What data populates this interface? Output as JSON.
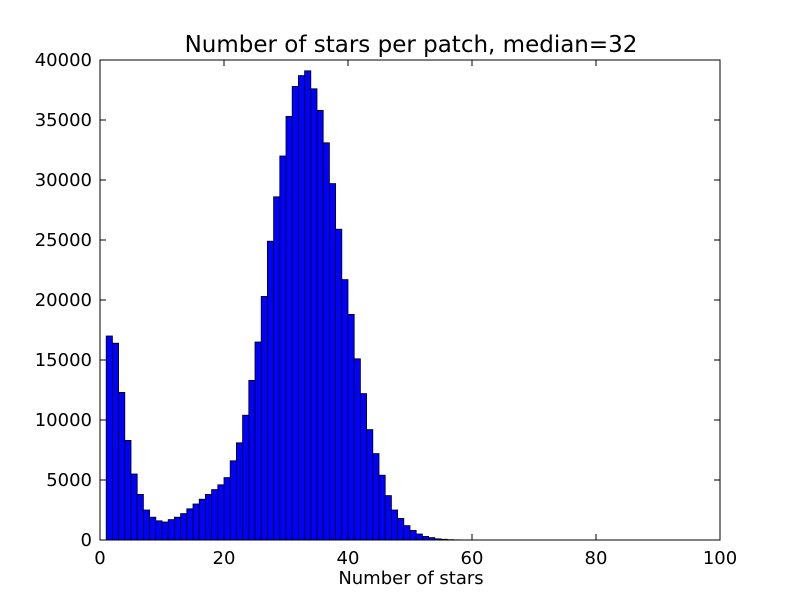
{
  "chart_data": {
    "type": "bar",
    "title": "Number of stars per patch, median=32",
    "xlabel": "Number of stars",
    "ylabel": "",
    "xlim": [
      0,
      100
    ],
    "ylim": [
      0,
      40000
    ],
    "xticks": [
      0,
      20,
      40,
      60,
      80,
      100
    ],
    "yticks": [
      0,
      5000,
      10000,
      15000,
      20000,
      25000,
      30000,
      35000,
      40000
    ],
    "grid": false,
    "bar_color": "#0000ff",
    "edge_color": "#000000",
    "bin_edges_start": 1,
    "bin_width": 1,
    "values": [
      17000,
      16400,
      12300,
      8300,
      5500,
      3800,
      2500,
      1900,
      1600,
      1500,
      1700,
      1900,
      2200,
      2600,
      3000,
      3400,
      3800,
      4200,
      4600,
      5200,
      6600,
      8100,
      10400,
      13300,
      16500,
      20300,
      24900,
      28600,
      32000,
      35300,
      37800,
      38700,
      39100,
      37600,
      35800,
      33100,
      29700,
      25900,
      21700,
      18800,
      15100,
      12200,
      9200,
      7200,
      5400,
      3700,
      2500,
      1800,
      1200,
      800,
      500,
      300,
      200,
      100,
      60,
      30,
      15,
      5,
      0,
      0,
      0,
      0,
      0,
      0,
      0,
      0,
      0,
      0,
      0,
      0,
      0,
      0,
      0,
      0,
      0,
      0,
      0,
      0,
      0,
      0,
      0,
      0,
      0,
      0,
      0,
      0,
      0,
      0,
      0,
      0,
      0,
      0,
      0,
      0,
      0
    ]
  }
}
